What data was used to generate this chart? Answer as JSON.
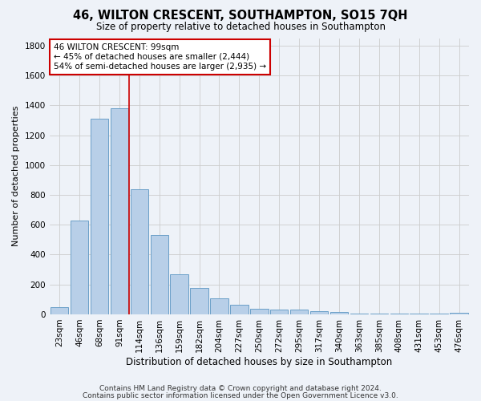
{
  "title": "46, WILTON CRESCENT, SOUTHAMPTON, SO15 7QH",
  "subtitle": "Size of property relative to detached houses in Southampton",
  "xlabel": "Distribution of detached houses by size in Southampton",
  "ylabel": "Number of detached properties",
  "categories": [
    "23sqm",
    "46sqm",
    "68sqm",
    "91sqm",
    "114sqm",
    "136sqm",
    "159sqm",
    "182sqm",
    "204sqm",
    "227sqm",
    "250sqm",
    "272sqm",
    "295sqm",
    "317sqm",
    "340sqm",
    "363sqm",
    "385sqm",
    "408sqm",
    "431sqm",
    "453sqm",
    "476sqm"
  ],
  "values": [
    50,
    630,
    1310,
    1380,
    840,
    530,
    270,
    175,
    105,
    65,
    35,
    30,
    30,
    20,
    15,
    5,
    5,
    5,
    5,
    5,
    10
  ],
  "bar_color": "#b8cfe8",
  "bar_edge_color": "#6a9fc8",
  "grid_color": "#cccccc",
  "vline_color": "#cc0000",
  "annotation_line1": "46 WILTON CRESCENT: 99sqm",
  "annotation_line2": "← 45% of detached houses are smaller (2,444)",
  "annotation_line3": "54% of semi-detached houses are larger (2,935) →",
  "annotation_box_color": "white",
  "annotation_box_edge": "#cc0000",
  "ylim": [
    0,
    1850
  ],
  "yticks": [
    0,
    200,
    400,
    600,
    800,
    1000,
    1200,
    1400,
    1600,
    1800
  ],
  "footer1": "Contains HM Land Registry data © Crown copyright and database right 2024.",
  "footer2": "Contains public sector information licensed under the Open Government Licence v3.0.",
  "bg_color": "#eef2f8",
  "title_fontsize": 10.5,
  "subtitle_fontsize": 8.5,
  "xlabel_fontsize": 8.5,
  "ylabel_fontsize": 8,
  "tick_fontsize": 7.5,
  "annotation_fontsize": 7.5,
  "footer_fontsize": 6.5
}
